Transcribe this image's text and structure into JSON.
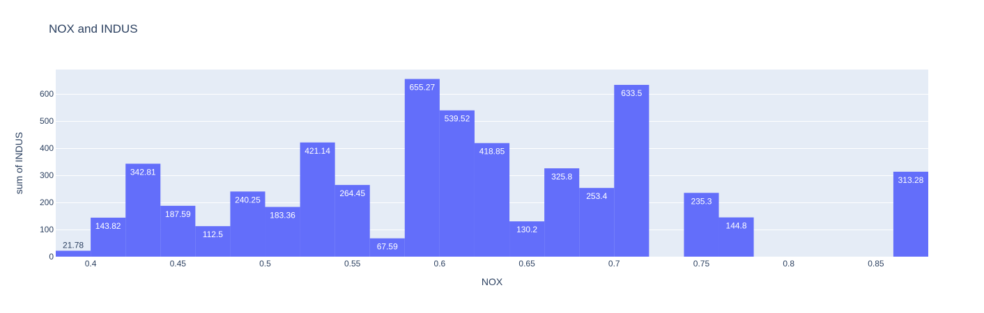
{
  "chart_data": {
    "type": "bar",
    "title": "NOX and INDUS",
    "xlabel": "NOX",
    "ylabel": "sum of INDUS",
    "bin_width": 0.02,
    "xlim": [
      0.38,
      0.88
    ],
    "ylim": [
      0,
      690
    ],
    "x_ticks": [
      0.4,
      0.45,
      0.5,
      0.55,
      0.6,
      0.65,
      0.7,
      0.75,
      0.8,
      0.85
    ],
    "x_tick_labels": [
      "0.4",
      "0.45",
      "0.5",
      "0.55",
      "0.6",
      "0.65",
      "0.7",
      "0.75",
      "0.8",
      "0.85"
    ],
    "y_ticks": [
      0,
      100,
      200,
      300,
      400,
      500,
      600
    ],
    "y_tick_labels": [
      "0",
      "100",
      "200",
      "300",
      "400",
      "500",
      "600"
    ],
    "bars": [
      {
        "x0": 0.38,
        "x1": 0.4,
        "value": 21.78,
        "label": "21.78"
      },
      {
        "x0": 0.4,
        "x1": 0.42,
        "value": 143.82,
        "label": "143.82"
      },
      {
        "x0": 0.42,
        "x1": 0.44,
        "value": 342.81,
        "label": "342.81"
      },
      {
        "x0": 0.44,
        "x1": 0.46,
        "value": 187.59,
        "label": "187.59"
      },
      {
        "x0": 0.46,
        "x1": 0.48,
        "value": 112.5,
        "label": "112.5"
      },
      {
        "x0": 0.48,
        "x1": 0.5,
        "value": 240.25,
        "label": "240.25"
      },
      {
        "x0": 0.5,
        "x1": 0.52,
        "value": 183.36,
        "label": "183.36"
      },
      {
        "x0": 0.52,
        "x1": 0.54,
        "value": 421.14,
        "label": "421.14"
      },
      {
        "x0": 0.54,
        "x1": 0.56,
        "value": 264.45,
        "label": "264.45"
      },
      {
        "x0": 0.56,
        "x1": 0.58,
        "value": 67.59,
        "label": "67.59"
      },
      {
        "x0": 0.58,
        "x1": 0.6,
        "value": 655.27,
        "label": "655.27"
      },
      {
        "x0": 0.6,
        "x1": 0.62,
        "value": 539.52,
        "label": "539.52"
      },
      {
        "x0": 0.62,
        "x1": 0.64,
        "value": 418.85,
        "label": "418.85"
      },
      {
        "x0": 0.64,
        "x1": 0.66,
        "value": 130.2,
        "label": "130.2"
      },
      {
        "x0": 0.66,
        "x1": 0.68,
        "value": 325.8,
        "label": "325.8"
      },
      {
        "x0": 0.68,
        "x1": 0.7,
        "value": 253.4,
        "label": "253.4"
      },
      {
        "x0": 0.7,
        "x1": 0.72,
        "value": 633.5,
        "label": "633.5"
      },
      {
        "x0": 0.74,
        "x1": 0.76,
        "value": 235.3,
        "label": "235.3"
      },
      {
        "x0": 0.76,
        "x1": 0.78,
        "value": 144.8,
        "label": "144.8"
      },
      {
        "x0": 0.86,
        "x1": 0.88,
        "value": 313.28,
        "label": "313.28"
      }
    ],
    "grid": true,
    "colors": {
      "bar": "#636efa",
      "plot_background": "#e5ecf6",
      "grid": "#ffffff",
      "text": "#2a3f5f",
      "bar_label_inside": "#ffffff",
      "bar_label_outside": "#2a3f5f"
    }
  }
}
